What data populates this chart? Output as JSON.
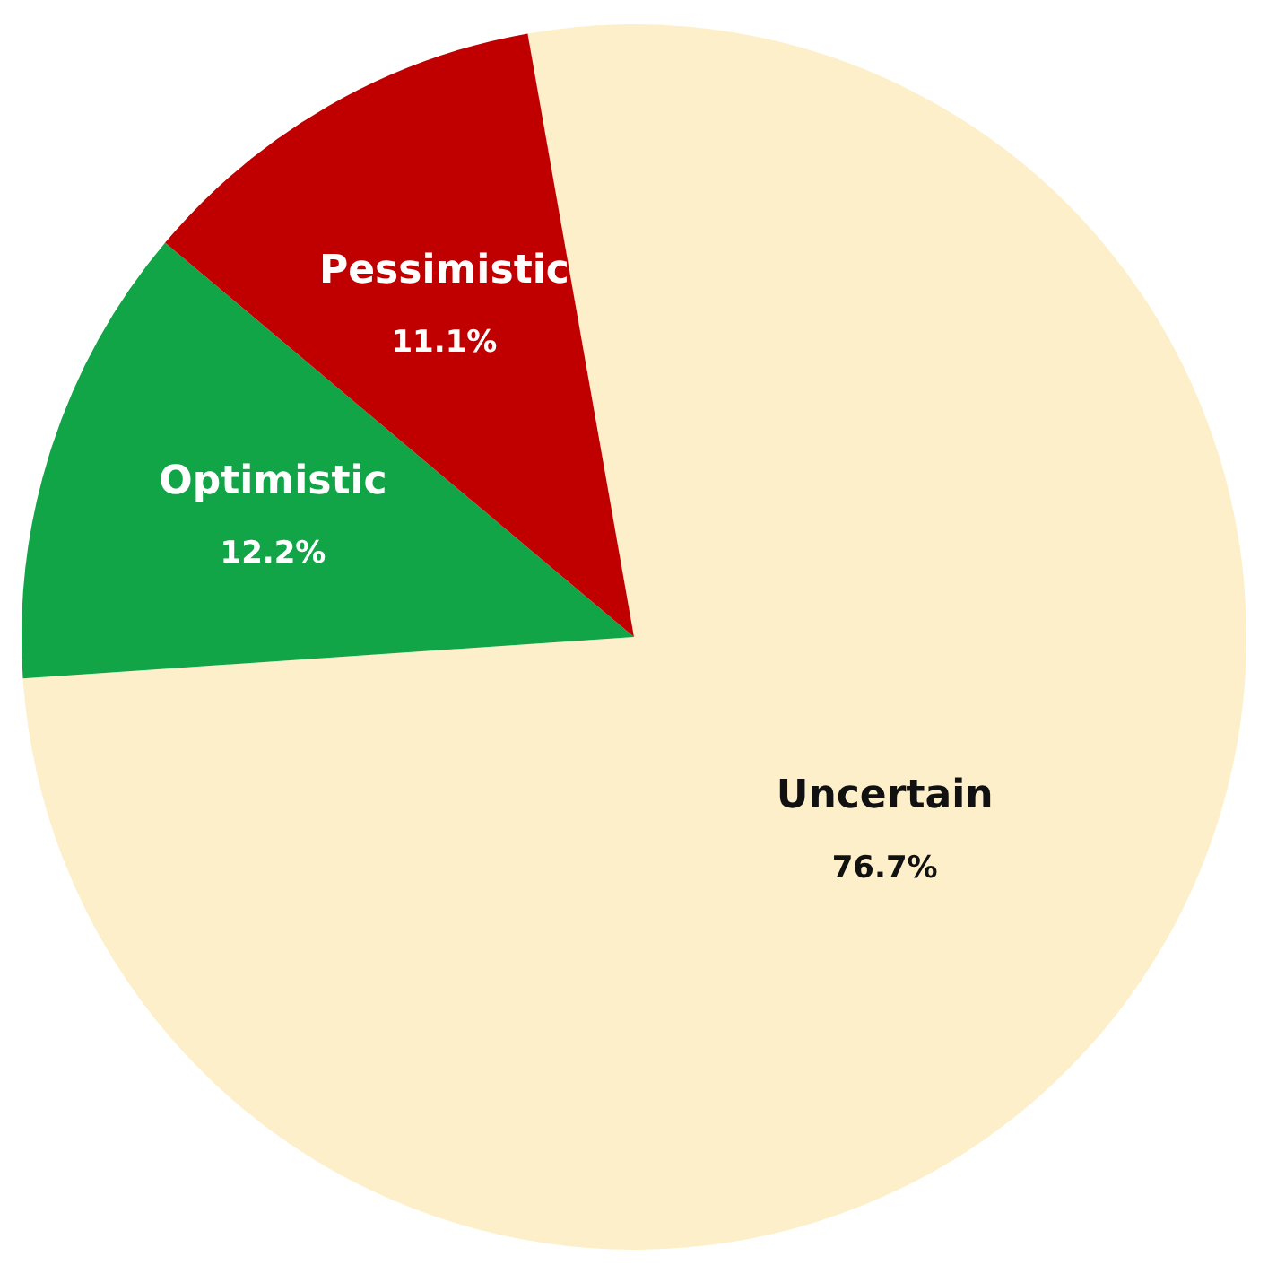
{
  "chart_data": {
    "type": "pie",
    "categories": [
      "Uncertain",
      "Optimistic",
      "Pessimistic"
    ],
    "values": [
      76.7,
      12.2,
      11.1
    ],
    "colors": [
      "#fdefc9",
      "#12a548",
      "#c00000"
    ],
    "value_labels": [
      "76.7%",
      "12.2%",
      "11.1%"
    ],
    "legend": false
  }
}
